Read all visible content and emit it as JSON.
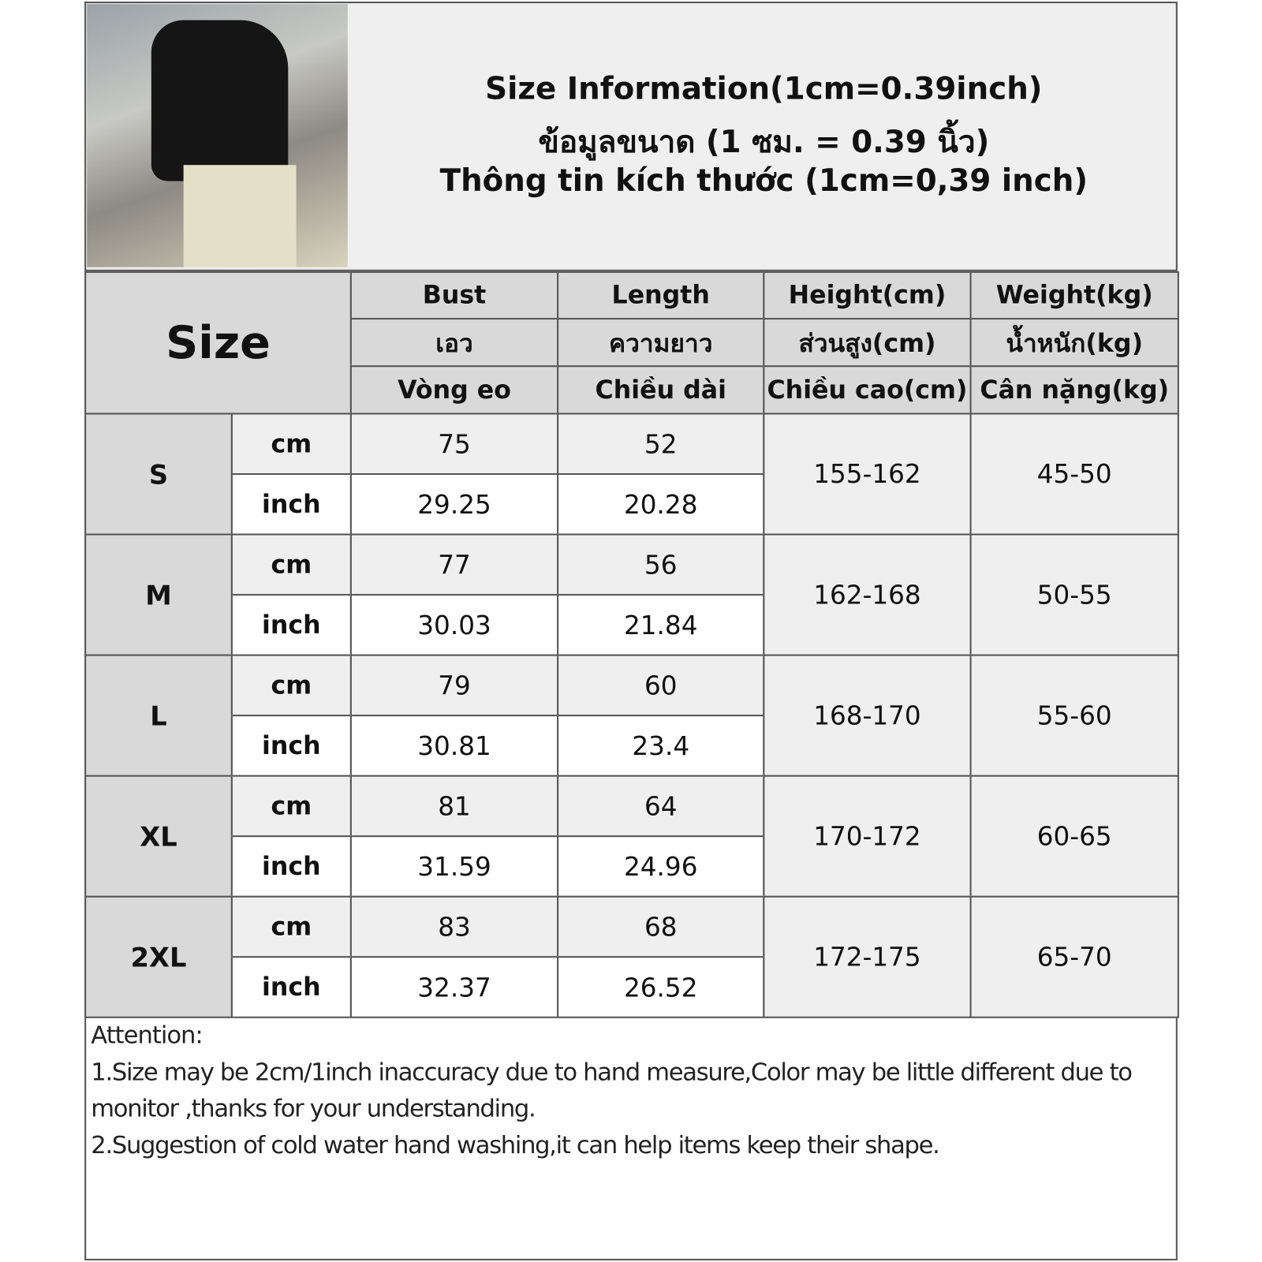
{
  "header": {
    "title_lines": [
      "Size Information(1cm=0.39inch)",
      "ข้อมูลขนาด (1 ซม. = 0.39 นิ้ว)",
      "Thông tin kích thước (1cm=0,39 inch)"
    ]
  },
  "table": {
    "size_label": "Size",
    "columns": [
      [
        "Bust",
        "เอว",
        "Vòng eo"
      ],
      [
        "Length",
        "ความยาว",
        "Chiều dài"
      ],
      [
        "Height(cm)",
        "ส่วนสูง(cm)",
        "Chiều cao(cm)"
      ],
      [
        "Weight(kg)",
        "น้ำหนัก(kg)",
        "Cân nặng(kg)"
      ]
    ],
    "rows": [
      {
        "size": "S",
        "units": [
          "cm",
          "inch"
        ],
        "bust": [
          "75",
          "29.25"
        ],
        "length": [
          "52",
          "20.28"
        ],
        "height": "155-162",
        "weight": "45-50"
      },
      {
        "size": "M",
        "units": [
          "cm",
          "inch"
        ],
        "bust": [
          "77",
          "30.03"
        ],
        "length": [
          "56",
          "21.84"
        ],
        "height": "162-168",
        "weight": "50-55"
      },
      {
        "size": "L",
        "units": [
          "cm",
          "inch"
        ],
        "bust": [
          "79",
          "30.81"
        ],
        "length": [
          "60",
          "23.4"
        ],
        "height": "168-170",
        "weight": "55-60"
      },
      {
        "size": "XL",
        "units": [
          "cm",
          "inch"
        ],
        "bust": [
          "81",
          "31.59"
        ],
        "length": [
          "64",
          "24.96"
        ],
        "height": "170-172",
        "weight": "60-65"
      },
      {
        "size": "2XL",
        "units": [
          "cm",
          "inch"
        ],
        "bust": [
          "83",
          "32.37"
        ],
        "length": [
          "68",
          "26.52"
        ],
        "height": "172-175",
        "weight": "65-70"
      }
    ]
  },
  "notes": {
    "heading": "Attention:",
    "lines": [
      "1.Size may be 2cm/1inch inaccuracy due to hand measure,Color may be little different due to monitor ,thanks for your understanding.",
      "2.Suggestion of cold water hand washing,it can help items keep their shape."
    ]
  }
}
